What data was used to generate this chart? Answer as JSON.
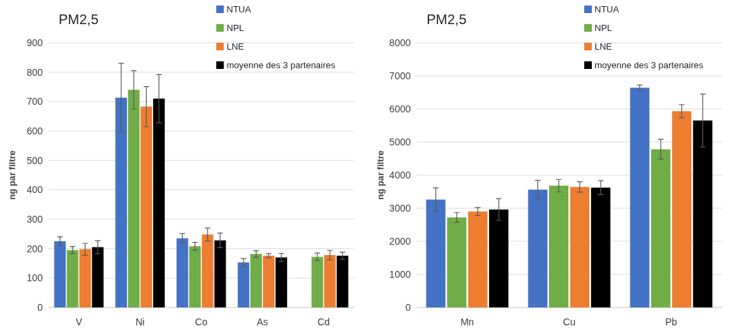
{
  "chart_data": [
    {
      "type": "bar",
      "title": "PM2,5",
      "ylabel": "ng par filtre",
      "categories": [
        "V",
        "Ni",
        "Co",
        "As",
        "Cd"
      ],
      "ylim": [
        0,
        900
      ],
      "yticks": [
        0,
        100,
        200,
        300,
        400,
        500,
        600,
        700,
        800,
        900
      ],
      "grid": "y",
      "legend": "top right",
      "series": [
        {
          "name": "NTUA",
          "color": "#4472c4",
          "values": [
            225,
            713,
            235,
            153,
            null
          ],
          "errors": [
            15,
            117,
            16,
            13,
            null
          ]
        },
        {
          "name": "NPL",
          "color": "#70ad47",
          "values": [
            195,
            740,
            208,
            182,
            172
          ],
          "errors": [
            12,
            65,
            13,
            11,
            13
          ]
        },
        {
          "name": "LNE",
          "color": "#ed7d31",
          "values": [
            198,
            683,
            248,
            176,
            178
          ],
          "errors": [
            20,
            68,
            22,
            7,
            16
          ]
        },
        {
          "name": "moyenne des 3 partenaires",
          "color": "#000000",
          "values": [
            205,
            710,
            228,
            170,
            176
          ],
          "errors": [
            22,
            82,
            25,
            14,
            12
          ]
        }
      ]
    },
    {
      "type": "bar",
      "title": "PM2,5",
      "ylabel": "ng par filtre",
      "categories": [
        "Mn",
        "Cu",
        "Pb"
      ],
      "ylim": [
        0,
        8000
      ],
      "yticks": [
        0,
        1000,
        2000,
        3000,
        4000,
        5000,
        6000,
        7000,
        8000
      ],
      "grid": "y",
      "legend": "top right",
      "series": [
        {
          "name": "NTUA",
          "color": "#4472c4",
          "values": [
            3260,
            3560,
            6640
          ],
          "errors": [
            350,
            280,
            80
          ]
        },
        {
          "name": "NPL",
          "color": "#70ad47",
          "values": [
            2720,
            3680,
            4780
          ],
          "errors": [
            150,
            190,
            300
          ]
        },
        {
          "name": "LNE",
          "color": "#ed7d31",
          "values": [
            2900,
            3640,
            5930
          ],
          "errors": [
            120,
            160,
            200
          ]
        },
        {
          "name": "moyenne des 3 partenaires",
          "color": "#000000",
          "values": [
            2960,
            3620,
            5650
          ],
          "errors": [
            330,
            210,
            800
          ]
        }
      ]
    }
  ]
}
